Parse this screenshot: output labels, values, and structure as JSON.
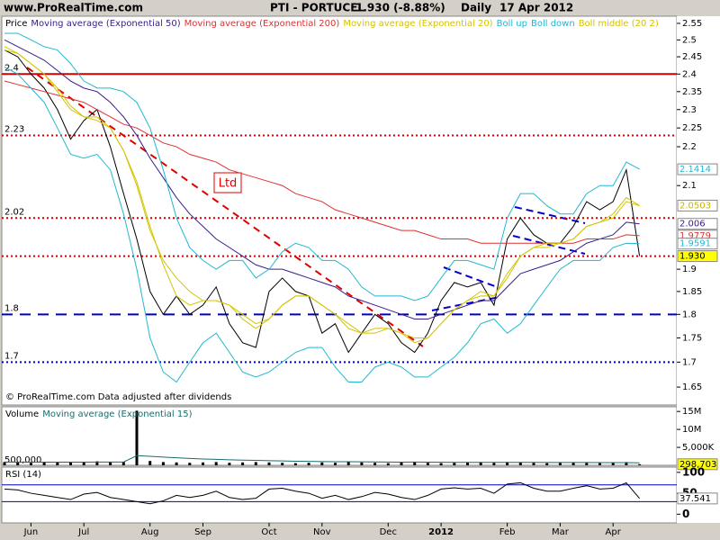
{
  "site": "www.ProRealTime.com",
  "chart_data": [
    {
      "type": "line",
      "title": "PTI - PORTUCEL",
      "quote": "1.930 (-8.88%)",
      "period": "Daily",
      "date": "17 Apr 2012",
      "footer": "© ProRealTime.com  Data adjusted after dividends",
      "annotation": "Ltd",
      "log_scale": true,
      "ylim": [
        1.615,
        2.572
      ],
      "yticks": [
        2.55,
        2.5,
        2.45,
        2.4,
        2.35,
        2.3,
        2.25,
        2.2,
        2.1,
        1.9,
        1.85,
        1.8,
        1.75,
        1.7,
        1.65
      ],
      "series": [
        {
          "name": "Price",
          "color": "#000000",
          "values": [
            2.47,
            2.45,
            2.4,
            2.36,
            2.3,
            2.22,
            2.27,
            2.3,
            2.2,
            2.08,
            1.97,
            1.85,
            1.8,
            1.84,
            1.8,
            1.82,
            1.86,
            1.78,
            1.74,
            1.73,
            1.85,
            1.88,
            1.85,
            1.84,
            1.76,
            1.78,
            1.72,
            1.76,
            1.8,
            1.78,
            1.74,
            1.72,
            1.76,
            1.83,
            1.87,
            1.86,
            1.87,
            1.82,
            1.97,
            2.02,
            1.98,
            1.96,
            1.96,
            2.0,
            2.06,
            2.04,
            2.06,
            2.14,
            1.93
          ]
        },
        {
          "name": "Moving average (Exponential 50)",
          "color": "#3a1c8c",
          "values": [
            2.5,
            2.48,
            2.46,
            2.44,
            2.41,
            2.38,
            2.36,
            2.35,
            2.32,
            2.28,
            2.23,
            2.17,
            2.12,
            2.07,
            2.03,
            2.0,
            1.97,
            1.95,
            1.93,
            1.91,
            1.9,
            1.9,
            1.89,
            1.88,
            1.87,
            1.86,
            1.84,
            1.83,
            1.82,
            1.81,
            1.8,
            1.79,
            1.79,
            1.8,
            1.81,
            1.82,
            1.83,
            1.83,
            1.86,
            1.89,
            1.9,
            1.91,
            1.92,
            1.94,
            1.96,
            1.97,
            1.98,
            2.01,
            2.006
          ]
        },
        {
          "name": "Moving average (Exponential 200)",
          "color": "#e03030",
          "values": [
            2.38,
            2.37,
            2.36,
            2.35,
            2.34,
            2.33,
            2.32,
            2.3,
            2.28,
            2.26,
            2.25,
            2.23,
            2.21,
            2.2,
            2.18,
            2.17,
            2.16,
            2.14,
            2.13,
            2.12,
            2.11,
            2.1,
            2.08,
            2.07,
            2.06,
            2.04,
            2.03,
            2.02,
            2.01,
            2.0,
            1.99,
            1.99,
            1.98,
            1.97,
            1.97,
            1.97,
            1.96,
            1.96,
            1.96,
            1.96,
            1.96,
            1.96,
            1.96,
            1.96,
            1.97,
            1.97,
            1.97,
            1.98,
            1.9779
          ]
        },
        {
          "name": "Moving average (Exponential 20)",
          "color": "#d4c400",
          "values": [
            2.48,
            2.46,
            2.43,
            2.4,
            2.35,
            2.3,
            2.28,
            2.28,
            2.25,
            2.19,
            2.1,
            1.99,
            1.92,
            1.88,
            1.85,
            1.83,
            1.83,
            1.82,
            1.79,
            1.77,
            1.79,
            1.82,
            1.84,
            1.84,
            1.82,
            1.8,
            1.77,
            1.76,
            1.77,
            1.77,
            1.76,
            1.74,
            1.75,
            1.78,
            1.81,
            1.83,
            1.85,
            1.84,
            1.88,
            1.93,
            1.95,
            1.96,
            1.96,
            1.97,
            2.0,
            2.01,
            2.03,
            2.07,
            2.0503
          ]
        },
        {
          "name": "Boll up",
          "color": "#22b8d0",
          "values": [
            2.52,
            2.52,
            2.5,
            2.48,
            2.47,
            2.43,
            2.38,
            2.36,
            2.36,
            2.35,
            2.32,
            2.25,
            2.14,
            2.02,
            1.95,
            1.92,
            1.9,
            1.92,
            1.92,
            1.88,
            1.9,
            1.94,
            1.96,
            1.95,
            1.92,
            1.92,
            1.9,
            1.86,
            1.84,
            1.84,
            1.84,
            1.83,
            1.84,
            1.88,
            1.92,
            1.92,
            1.91,
            1.9,
            2.02,
            2.08,
            2.08,
            2.05,
            2.03,
            2.03,
            2.08,
            2.1,
            2.1,
            2.16,
            2.1414
          ]
        },
        {
          "name": "Boll down",
          "color": "#22b8d0",
          "values": [
            2.42,
            2.4,
            2.36,
            2.32,
            2.25,
            2.18,
            2.17,
            2.18,
            2.14,
            2.03,
            1.9,
            1.75,
            1.68,
            1.66,
            1.7,
            1.74,
            1.76,
            1.72,
            1.68,
            1.67,
            1.68,
            1.7,
            1.72,
            1.73,
            1.73,
            1.69,
            1.66,
            1.66,
            1.69,
            1.7,
            1.69,
            1.67,
            1.67,
            1.69,
            1.71,
            1.74,
            1.78,
            1.79,
            1.76,
            1.78,
            1.82,
            1.86,
            1.9,
            1.92,
            1.92,
            1.92,
            1.95,
            1.96,
            1.9591
          ]
        },
        {
          "name": "Boll middle (20 2)",
          "color": "#d4c400",
          "values": [
            2.47,
            2.46,
            2.43,
            2.4,
            2.36,
            2.31,
            2.28,
            2.27,
            2.25,
            2.19,
            2.11,
            2.0,
            1.91,
            1.84,
            1.82,
            1.83,
            1.83,
            1.82,
            1.8,
            1.78,
            1.79,
            1.82,
            1.84,
            1.84,
            1.82,
            1.8,
            1.78,
            1.76,
            1.76,
            1.77,
            1.76,
            1.75,
            1.75,
            1.78,
            1.81,
            1.83,
            1.84,
            1.84,
            1.89,
            1.93,
            1.95,
            1.95,
            1.96,
            1.97,
            2.0,
            2.01,
            2.02,
            2.06,
            2.05
          ]
        }
      ],
      "levels": [
        {
          "value": 2.4,
          "color": "#d00000",
          "dash": "solid",
          "labeled": true
        },
        {
          "value": 2.23,
          "color": "#d00000",
          "dash": "dotted",
          "labeled": true
        },
        {
          "value": 2.02,
          "color": "#d00000",
          "dash": "dotted",
          "labeled": true
        },
        {
          "value": 1.93,
          "color": "#d00000",
          "dash": "dotted",
          "labeled": false
        },
        {
          "value": 1.8,
          "color": "#0000c0",
          "dash": "dashed",
          "labeled": true
        },
        {
          "value": 1.7,
          "color": "#0000c0",
          "dash": "dotted",
          "labeled": true
        }
      ],
      "last_values": [
        {
          "value": 2.1414,
          "color": "#22b8d0",
          "background": "#ffffff"
        },
        {
          "value": 2.0503,
          "color": "#c8b400",
          "background": "#ffffff"
        },
        {
          "value": 2.006,
          "color": "#3a1c8c",
          "background": "#ffffff"
        },
        {
          "value": 1.9779,
          "color": "#e03030",
          "background": "#ffffff"
        },
        {
          "value": 1.9591,
          "color": "#22b8d0",
          "background": "#ffffff"
        },
        {
          "value": 1.93,
          "label": "1.930",
          "color": "#000000",
          "background": "#ffff00"
        }
      ]
    },
    {
      "type": "bar",
      "ylim": [
        0,
        16300000
      ],
      "yticks": [
        {
          "value": 15000000,
          "label": "15M"
        },
        {
          "value": 10000000,
          "label": "10M"
        },
        {
          "value": 5000000,
          "label": "5,000K"
        }
      ],
      "series": [
        {
          "name": "Volume",
          "color": "#000000",
          "values": [
            900000,
            800000,
            700000,
            900000,
            1000000,
            800000,
            900000,
            1100000,
            900000,
            1000000,
            15200000,
            1200000,
            900000,
            800000,
            700000,
            800000,
            900000,
            700000,
            800000,
            900000,
            800000,
            700000,
            600000,
            700000,
            800000,
            700000,
            900000,
            800000,
            700000,
            600000,
            800000,
            1000000,
            700000,
            600000,
            700000,
            800000,
            900000,
            700000,
            900000,
            800000,
            700000,
            600000,
            700000,
            800000,
            700000,
            600000,
            700000,
            900000,
            300000
          ]
        },
        {
          "name": "Moving average (Exponential 15)",
          "color": "#1a6b6b",
          "values": [
            900000,
            880000,
            860000,
            870000,
            890000,
            880000,
            880000,
            910000,
            910000,
            920000,
            2700000,
            2500000,
            2300000,
            2100000,
            1900000,
            1750000,
            1650000,
            1530000,
            1440000,
            1370000,
            1300000,
            1220000,
            1140000,
            1090000,
            1050000,
            1010000,
            990000,
            970000,
            940000,
            900000,
            890000,
            900000,
            880000,
            840000,
            820000,
            820000,
            830000,
            810000,
            820000,
            820000,
            810000,
            790000,
            780000,
            780000,
            770000,
            750000,
            740000,
            760000,
            700000
          ]
        }
      ],
      "left_label": {
        "value": 500000,
        "label": "500,000"
      },
      "last_values": [
        {
          "value": 298703,
          "label": "298,703",
          "color": "#000000",
          "background": "#ffff00"
        }
      ]
    },
    {
      "type": "line",
      "ylim": [
        -20.8,
        112.5
      ],
      "yticks": [
        100,
        50,
        0
      ],
      "series": [
        {
          "name": "RSI (14)",
          "color": "#000000",
          "values": [
            60,
            58,
            50,
            45,
            40,
            35,
            48,
            52,
            40,
            35,
            30,
            25,
            32,
            45,
            40,
            45,
            55,
            40,
            35,
            38,
            60,
            62,
            55,
            50,
            38,
            45,
            35,
            42,
            52,
            48,
            40,
            35,
            45,
            60,
            63,
            60,
            62,
            50,
            72,
            75,
            62,
            55,
            55,
            62,
            68,
            60,
            62,
            75,
            37.541
          ]
        }
      ],
      "levels": [
        {
          "value": 70,
          "color": "#0000c0"
        },
        {
          "value": 30,
          "color": "#0000c0"
        }
      ],
      "last_values": [
        {
          "value": 37.541,
          "color": "#000000",
          "background": "#ffffff"
        }
      ],
      "categories": [
        null,
        null,
        "Jun",
        null,
        null,
        null,
        "Jul",
        null,
        null,
        null,
        null,
        "Aug",
        null,
        null,
        null,
        "Sep",
        null,
        null,
        null,
        null,
        "Oct",
        null,
        null,
        null,
        "Nov",
        null,
        null,
        null,
        null,
        "Dec",
        null,
        null,
        null,
        "2012",
        null,
        null,
        null,
        null,
        "Feb",
        null,
        null,
        null,
        "Mar",
        null,
        null,
        null,
        "Apr",
        null,
        null
      ]
    }
  ]
}
